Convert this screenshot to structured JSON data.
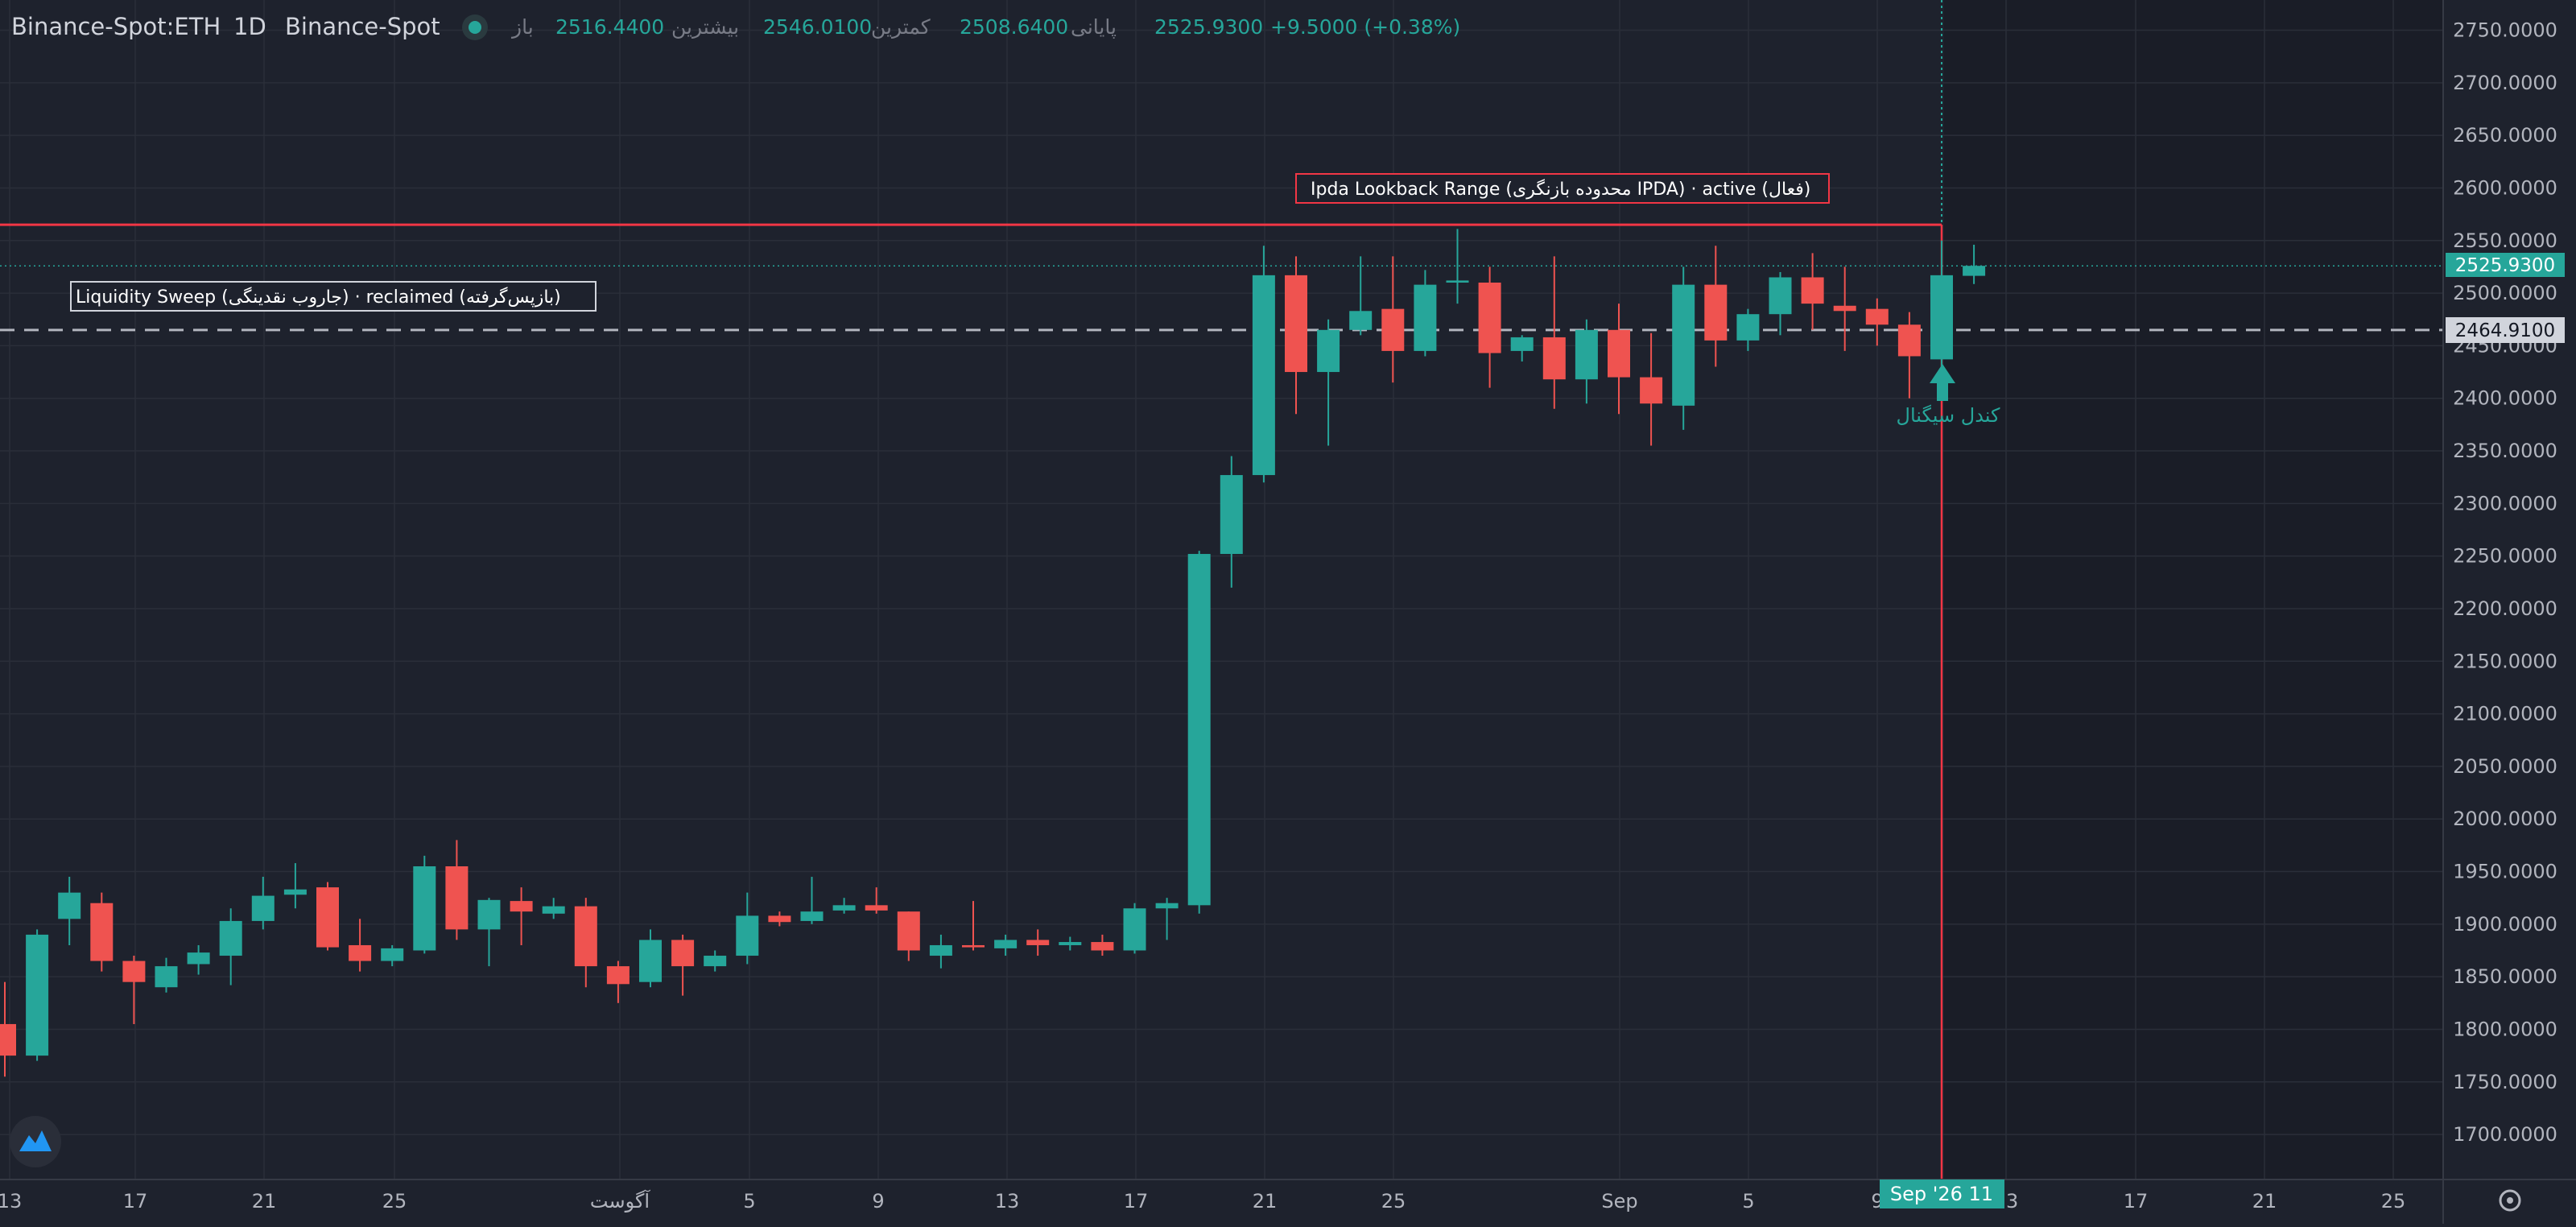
{
  "header": {
    "symbol": "Binance-Spot:ETH",
    "interval": "1D",
    "exchange": "Binance-Spot",
    "open_label": "باز",
    "open_value": "2516.4400",
    "high_label": "بیشترین",
    "high_value": "2546.0100",
    "low_label": "کمترین",
    "low_value": "2508.6400",
    "close_label": "پایانی",
    "close_value": "2525.9300",
    "change": "+9.5000 (+0.38%)"
  },
  "annotations": {
    "ipda_box": "Ipda Lookback Range (محدوده بازنگری IPDA) · active (فعال)",
    "sweep_box": "Liquidity Sweep (جاروب نقدینگی) · reclaimed (بازپس‌گرفته)",
    "signal_label": "کندل سیگنال"
  },
  "price_tags": {
    "last_price": "2525.9300",
    "level_price": "2464.9100"
  },
  "crosshair_label": "Sep '26 11",
  "colors": {
    "background": "#1e222d",
    "up": "#26a69a",
    "down": "#ef5350",
    "ipda_line": "#f23645",
    "grid": "#2a2e39",
    "text": "#b2b5be"
  },
  "chart_data": {
    "type": "candlestick",
    "y_axis": {
      "range": [
        1670,
        2760
      ],
      "ticks": [
        "1700.0000",
        "1750.0000",
        "1800.0000",
        "1850.0000",
        "1900.0000",
        "1950.0000",
        "2000.0000",
        "2050.0000",
        "2100.0000",
        "2150.0000",
        "2200.0000",
        "2250.0000",
        "2300.0000",
        "2350.0000",
        "2400.0000",
        "2450.0000",
        "2500.0000",
        "2550.0000",
        "2600.0000",
        "2650.0000",
        "2700.0000",
        "2750.0000"
      ]
    },
    "x_axis": {
      "ticks": [
        "13",
        "17",
        "21",
        "25",
        "آگوست",
        "5",
        "9",
        "13",
        "17",
        "21",
        "25",
        "Sep",
        "5",
        "9",
        "13",
        "17",
        "21",
        "25"
      ]
    },
    "lines": {
      "ipda_range_high": 2565,
      "liquidity_sweep_level": 2464.91,
      "last_price": 2525.93
    },
    "signal_candle_index": 60,
    "candles": [
      [
        1805,
        1845,
        1755,
        1775
      ],
      [
        1775,
        1895,
        1770,
        1890
      ],
      [
        1905,
        1945,
        1880,
        1930
      ],
      [
        1920,
        1930,
        1855,
        1865
      ],
      [
        1865,
        1870,
        1805,
        1845
      ],
      [
        1840,
        1868,
        1835,
        1860
      ],
      [
        1862,
        1880,
        1852,
        1873
      ],
      [
        1870,
        1915,
        1842,
        1903
      ],
      [
        1903,
        1945,
        1895,
        1927
      ],
      [
        1928,
        1958,
        1915,
        1933
      ],
      [
        1935,
        1940,
        1875,
        1878
      ],
      [
        1880,
        1905,
        1855,
        1865
      ],
      [
        1865,
        1880,
        1860,
        1877
      ],
      [
        1875,
        1965,
        1872,
        1955
      ],
      [
        1955,
        1980,
        1885,
        1895
      ],
      [
        1895,
        1925,
        1860,
        1923
      ],
      [
        1922,
        1935,
        1880,
        1912
      ],
      [
        1910,
        1925,
        1905,
        1917
      ],
      [
        1917,
        1925,
        1840,
        1860
      ],
      [
        1860,
        1865,
        1825,
        1843
      ],
      [
        1845,
        1895,
        1840,
        1885
      ],
      [
        1885,
        1890,
        1832,
        1860
      ],
      [
        1860,
        1875,
        1855,
        1870
      ],
      [
        1870,
        1930,
        1862,
        1908
      ],
      [
        1908,
        1912,
        1898,
        1902
      ],
      [
        1903,
        1945,
        1900,
        1912
      ],
      [
        1913,
        1925,
        1910,
        1918
      ],
      [
        1918,
        1935,
        1910,
        1913
      ],
      [
        1912,
        1912,
        1865,
        1875
      ],
      [
        1870,
        1890,
        1858,
        1880
      ],
      [
        1880,
        1922,
        1875,
        1878
      ],
      [
        1877,
        1890,
        1870,
        1885
      ],
      [
        1885,
        1895,
        1870,
        1880
      ],
      [
        1880,
        1888,
        1875,
        1883
      ],
      [
        1883,
        1890,
        1870,
        1875
      ],
      [
        1875,
        1920,
        1872,
        1915
      ],
      [
        1915,
        1925,
        1885,
        1920
      ],
      [
        1918,
        2255,
        1910,
        2252
      ],
      [
        2252,
        2345,
        2220,
        2327
      ],
      [
        2327,
        2545,
        2320,
        2517
      ],
      [
        2517,
        2535,
        2385,
        2425
      ],
      [
        2425,
        2475,
        2355,
        2465
      ],
      [
        2465,
        2535,
        2460,
        2483
      ],
      [
        2485,
        2535,
        2415,
        2445
      ],
      [
        2445,
        2522,
        2440,
        2508
      ],
      [
        2510,
        2561,
        2490,
        2512
      ],
      [
        2510,
        2525,
        2410,
        2443
      ],
      [
        2445,
        2460,
        2435,
        2458
      ],
      [
        2458,
        2535,
        2390,
        2418
      ],
      [
        2418,
        2475,
        2395,
        2465
      ],
      [
        2465,
        2490,
        2385,
        2420
      ],
      [
        2420,
        2462,
        2355,
        2395
      ],
      [
        2393,
        2525,
        2370,
        2508
      ],
      [
        2508,
        2545,
        2430,
        2455
      ],
      [
        2455,
        2485,
        2445,
        2480
      ],
      [
        2480,
        2520,
        2460,
        2515
      ],
      [
        2515,
        2538,
        2465,
        2490
      ],
      [
        2488,
        2525,
        2445,
        2483
      ],
      [
        2485,
        2495,
        2450,
        2470
      ],
      [
        2470,
        2482,
        2400,
        2440
      ],
      [
        2437,
        2550,
        2425,
        2517
      ],
      [
        2516.44,
        2546.01,
        2508.64,
        2525.93
      ]
    ]
  }
}
